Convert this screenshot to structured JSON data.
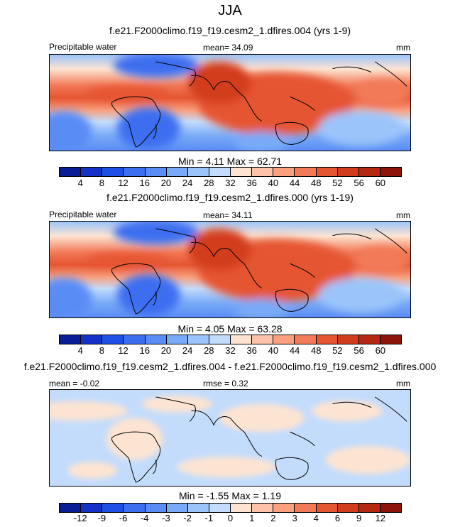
{
  "season": "JJA",
  "panels": [
    {
      "title": "f.e21.F2000climo.f19_f19.cesm2_1.dfires.004 (yrs 1-9)",
      "left_label": "Precipitable water",
      "center_label": "mean=  34.09",
      "units": "mm",
      "minmax": "Min =   4.11 Max =  62.71"
    },
    {
      "title": "f.e21.F2000climo.f19_f19.cesm2_1.dfires.000 (yrs 1-19)",
      "left_label": "Precipitable water",
      "center_label": "mean=  34.11",
      "units": "mm",
      "minmax": "Min =   4.05 Max =  63.28"
    },
    {
      "title": "f.e21.F2000climo.f19_f19.cesm2_1.dfires.004 - f.e21.F2000climo.f19_f19.cesm2_1.dfires.000",
      "left_label": "mean =  -0.02",
      "center_label": "rmse =   0.32",
      "units": "mm",
      "minmax": "Min =  -1.55 Max =   1.19"
    }
  ],
  "colorbar_abs": {
    "colors": [
      "#0a1c96",
      "#1432c8",
      "#1e50e6",
      "#3c6ef0",
      "#5a8cf5",
      "#78aaf8",
      "#9bc4fa",
      "#c3dcfc",
      "#fde4d2",
      "#fcc3a8",
      "#f9a080",
      "#f27a58",
      "#e65532",
      "#d23c1e",
      "#b42814",
      "#8c1408"
    ],
    "ticks": [
      "4",
      "8",
      "12",
      "16",
      "20",
      "24",
      "28",
      "32",
      "36",
      "40",
      "44",
      "48",
      "52",
      "56",
      "60"
    ]
  },
  "colorbar_diff": {
    "colors": [
      "#0a1c96",
      "#1432c8",
      "#1e50e6",
      "#3c6ef0",
      "#5a8cf5",
      "#78aaf8",
      "#9bc4fa",
      "#c3dcfc",
      "#fde4d2",
      "#fcc3a8",
      "#f9a080",
      "#f27a58",
      "#e65532",
      "#d23c1e",
      "#b42814",
      "#8c1408"
    ],
    "ticks": [
      "-12",
      "-9",
      "-6",
      "-4",
      "-3",
      "-2",
      "-1",
      "0",
      "1",
      "2",
      "3",
      "4",
      "6",
      "9",
      "12"
    ]
  }
}
